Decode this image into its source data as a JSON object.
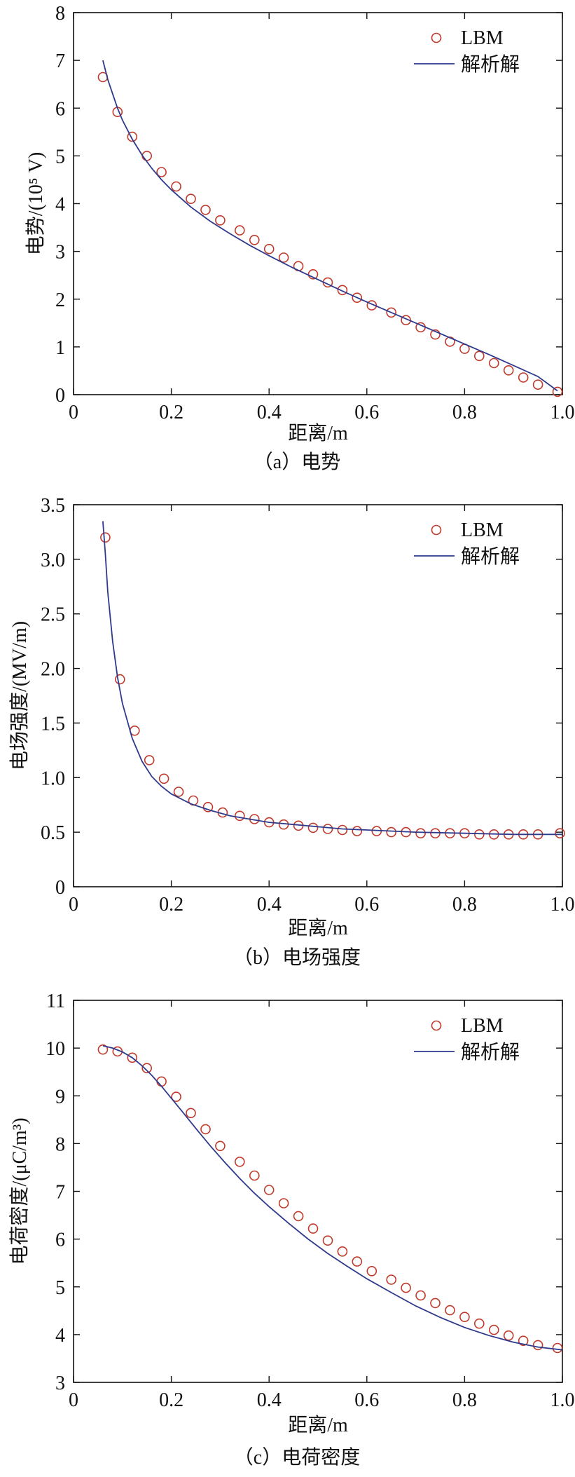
{
  "chart_data": [
    {
      "type": "line",
      "caption": "（a）电势",
      "xlabel": "距离/m",
      "ylabel": "电势/(10⁵ V)",
      "xlim": [
        0,
        1.0
      ],
      "ylim": [
        0,
        8
      ],
      "xticks": [
        "0",
        "0.2",
        "0.4",
        "0.6",
        "0.8",
        "1.0"
      ],
      "yticks": [
        "0",
        "1",
        "2",
        "3",
        "4",
        "5",
        "6",
        "7",
        "8"
      ],
      "legend_position": "top-right",
      "series": [
        {
          "name": "LBM",
          "style": "markers",
          "color": "#c0392b",
          "x": [
            0.06,
            0.09,
            0.12,
            0.15,
            0.18,
            0.21,
            0.24,
            0.27,
            0.3,
            0.34,
            0.37,
            0.4,
            0.43,
            0.46,
            0.49,
            0.52,
            0.55,
            0.58,
            0.61,
            0.65,
            0.68,
            0.71,
            0.74,
            0.77,
            0.8,
            0.83,
            0.86,
            0.89,
            0.92,
            0.95,
            0.99
          ],
          "y": [
            6.65,
            5.92,
            5.4,
            5.0,
            4.66,
            4.36,
            4.1,
            3.87,
            3.65,
            3.44,
            3.24,
            3.05,
            2.87,
            2.69,
            2.52,
            2.35,
            2.19,
            2.03,
            1.87,
            1.72,
            1.56,
            1.41,
            1.26,
            1.11,
            0.96,
            0.81,
            0.66,
            0.51,
            0.36,
            0.21,
            0.06
          ]
        },
        {
          "name": "解析解",
          "style": "line",
          "color": "#2e3a8c",
          "x": [
            0.06,
            0.07,
            0.08,
            0.09,
            0.1,
            0.12,
            0.14,
            0.16,
            0.18,
            0.2,
            0.24,
            0.28,
            0.32,
            0.36,
            0.4,
            0.45,
            0.5,
            0.55,
            0.6,
            0.65,
            0.7,
            0.75,
            0.8,
            0.85,
            0.9,
            0.95,
            0.99
          ],
          "y": [
            7.0,
            6.6,
            6.3,
            6.0,
            5.75,
            5.35,
            5.02,
            4.74,
            4.5,
            4.29,
            3.93,
            3.63,
            3.37,
            3.13,
            2.91,
            2.65,
            2.41,
            2.17,
            1.94,
            1.72,
            1.5,
            1.28,
            1.06,
            0.84,
            0.61,
            0.38,
            0.08
          ]
        }
      ]
    },
    {
      "type": "line",
      "caption": "（b）电场强度",
      "xlabel": "距离/m",
      "ylabel": "电场强度/(MV/m)",
      "xlim": [
        0,
        1.0
      ],
      "ylim": [
        0,
        3.5
      ],
      "xticks": [
        "0",
        "0.2",
        "0.4",
        "0.6",
        "0.8",
        "1.0"
      ],
      "yticks": [
        "0",
        "0.5",
        "1.0",
        "1.5",
        "2.0",
        "2.5",
        "3.0",
        "3.5"
      ],
      "legend_position": "top-right",
      "series": [
        {
          "name": "LBM",
          "style": "markers",
          "color": "#c0392b",
          "x": [
            0.065,
            0.095,
            0.125,
            0.155,
            0.185,
            0.215,
            0.245,
            0.275,
            0.305,
            0.34,
            0.37,
            0.4,
            0.43,
            0.46,
            0.49,
            0.52,
            0.55,
            0.58,
            0.62,
            0.65,
            0.68,
            0.71,
            0.74,
            0.77,
            0.8,
            0.83,
            0.86,
            0.89,
            0.92,
            0.95,
            0.995
          ],
          "y": [
            3.2,
            1.9,
            1.43,
            1.16,
            0.99,
            0.87,
            0.79,
            0.73,
            0.68,
            0.65,
            0.62,
            0.59,
            0.57,
            0.56,
            0.54,
            0.53,
            0.52,
            0.51,
            0.51,
            0.5,
            0.5,
            0.49,
            0.49,
            0.49,
            0.49,
            0.48,
            0.48,
            0.48,
            0.48,
            0.48,
            0.49
          ]
        },
        {
          "name": "解析解",
          "style": "line",
          "color": "#2e3a8c",
          "x": [
            0.06,
            0.065,
            0.07,
            0.08,
            0.09,
            0.1,
            0.12,
            0.14,
            0.16,
            0.18,
            0.2,
            0.24,
            0.28,
            0.32,
            0.36,
            0.4,
            0.45,
            0.5,
            0.55,
            0.6,
            0.7,
            0.8,
            0.9,
            1.0
          ],
          "y": [
            3.35,
            3.05,
            2.7,
            2.25,
            1.92,
            1.68,
            1.36,
            1.15,
            1.01,
            0.92,
            0.85,
            0.76,
            0.7,
            0.65,
            0.62,
            0.59,
            0.57,
            0.55,
            0.53,
            0.52,
            0.5,
            0.49,
            0.48,
            0.48
          ]
        }
      ]
    },
    {
      "type": "line",
      "caption": "（c）电荷密度",
      "xlabel": "距离/m",
      "ylabel": "电荷密度/(μC/m³)",
      "xlim": [
        0,
        1.0
      ],
      "ylim": [
        3,
        11
      ],
      "xticks": [
        "0",
        "0.2",
        "0.4",
        "0.6",
        "0.8",
        "1.0"
      ],
      "yticks": [
        "3",
        "4",
        "5",
        "6",
        "7",
        "8",
        "9",
        "10",
        "11"
      ],
      "legend_position": "top-right",
      "series": [
        {
          "name": "LBM",
          "style": "markers",
          "color": "#c0392b",
          "x": [
            0.06,
            0.09,
            0.12,
            0.15,
            0.18,
            0.21,
            0.24,
            0.27,
            0.3,
            0.34,
            0.37,
            0.4,
            0.43,
            0.46,
            0.49,
            0.52,
            0.55,
            0.58,
            0.61,
            0.65,
            0.68,
            0.71,
            0.74,
            0.77,
            0.8,
            0.83,
            0.86,
            0.89,
            0.92,
            0.95,
            0.99
          ],
          "y": [
            9.97,
            9.93,
            9.8,
            9.58,
            9.3,
            8.98,
            8.64,
            8.3,
            7.95,
            7.62,
            7.33,
            7.03,
            6.75,
            6.48,
            6.22,
            5.97,
            5.74,
            5.53,
            5.33,
            5.15,
            4.98,
            4.82,
            4.66,
            4.51,
            4.37,
            4.23,
            4.1,
            3.98,
            3.87,
            3.78,
            3.72
          ]
        },
        {
          "name": "解析解",
          "style": "line",
          "color": "#2e3a8c",
          "x": [
            0.06,
            0.08,
            0.1,
            0.12,
            0.14,
            0.16,
            0.18,
            0.2,
            0.22,
            0.25,
            0.28,
            0.31,
            0.34,
            0.37,
            0.4,
            0.44,
            0.48,
            0.52,
            0.56,
            0.6,
            0.65,
            0.7,
            0.75,
            0.8,
            0.85,
            0.9,
            0.95,
            1.0
          ],
          "y": [
            10.05,
            10.0,
            9.92,
            9.8,
            9.63,
            9.43,
            9.2,
            8.95,
            8.7,
            8.32,
            7.95,
            7.6,
            7.27,
            6.96,
            6.68,
            6.33,
            6.0,
            5.7,
            5.43,
            5.17,
            4.88,
            4.6,
            4.36,
            4.15,
            3.98,
            3.84,
            3.74,
            3.68
          ]
        }
      ]
    }
  ]
}
